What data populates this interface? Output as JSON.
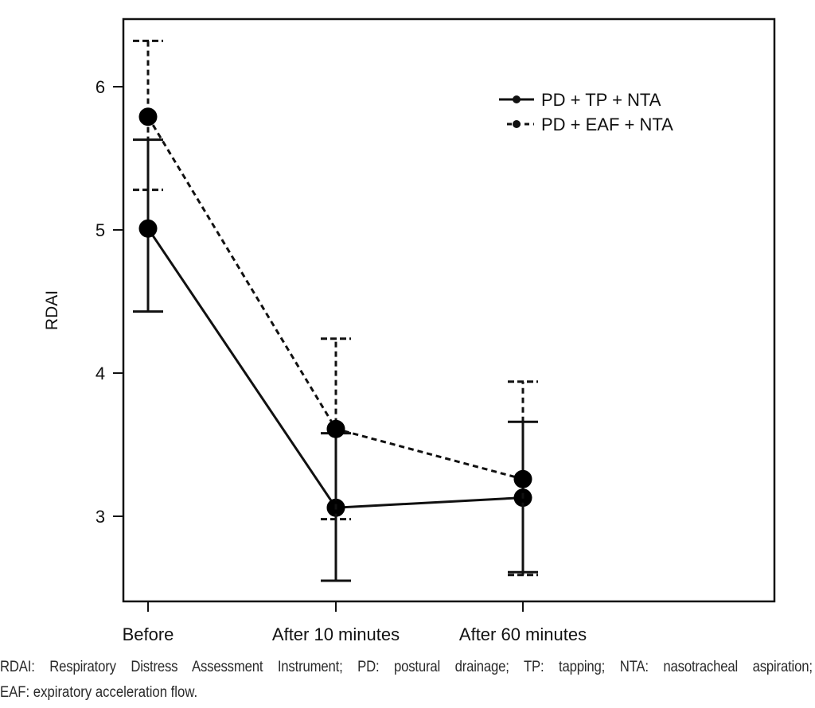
{
  "chart_data": {
    "type": "line",
    "title": "",
    "xlabel": "",
    "ylabel": "RDAI",
    "categories": [
      "Before",
      "After 10 minutes",
      "After 60 minutes"
    ],
    "ylim": [
      2.45,
      6.55
    ],
    "yticks": [
      3,
      4,
      5,
      6
    ],
    "grid": false,
    "legend_position": "top-right",
    "series": [
      {
        "name": "PD + TP + NTA",
        "line_style": "solid",
        "values": [
          5.01,
          3.06,
          3.13
        ],
        "error_lower": [
          4.43,
          2.55,
          2.61
        ],
        "error_upper": [
          5.63,
          3.58,
          3.66
        ]
      },
      {
        "name": "PD + EAF + NTA",
        "line_style": "dashed",
        "values": [
          5.79,
          3.61,
          3.26
        ],
        "error_lower": [
          5.28,
          2.98,
          2.59
        ],
        "error_upper": [
          6.32,
          4.24,
          3.94
        ]
      }
    ],
    "color": "#000000"
  },
  "caption": {
    "line1": "RDAI: Respiratory Distress Assessment Instrument; PD: postural drainage; TP: tapping; NTA: nasotracheal aspiration;",
    "line2": "EAF: expiratory acceleration flow."
  }
}
